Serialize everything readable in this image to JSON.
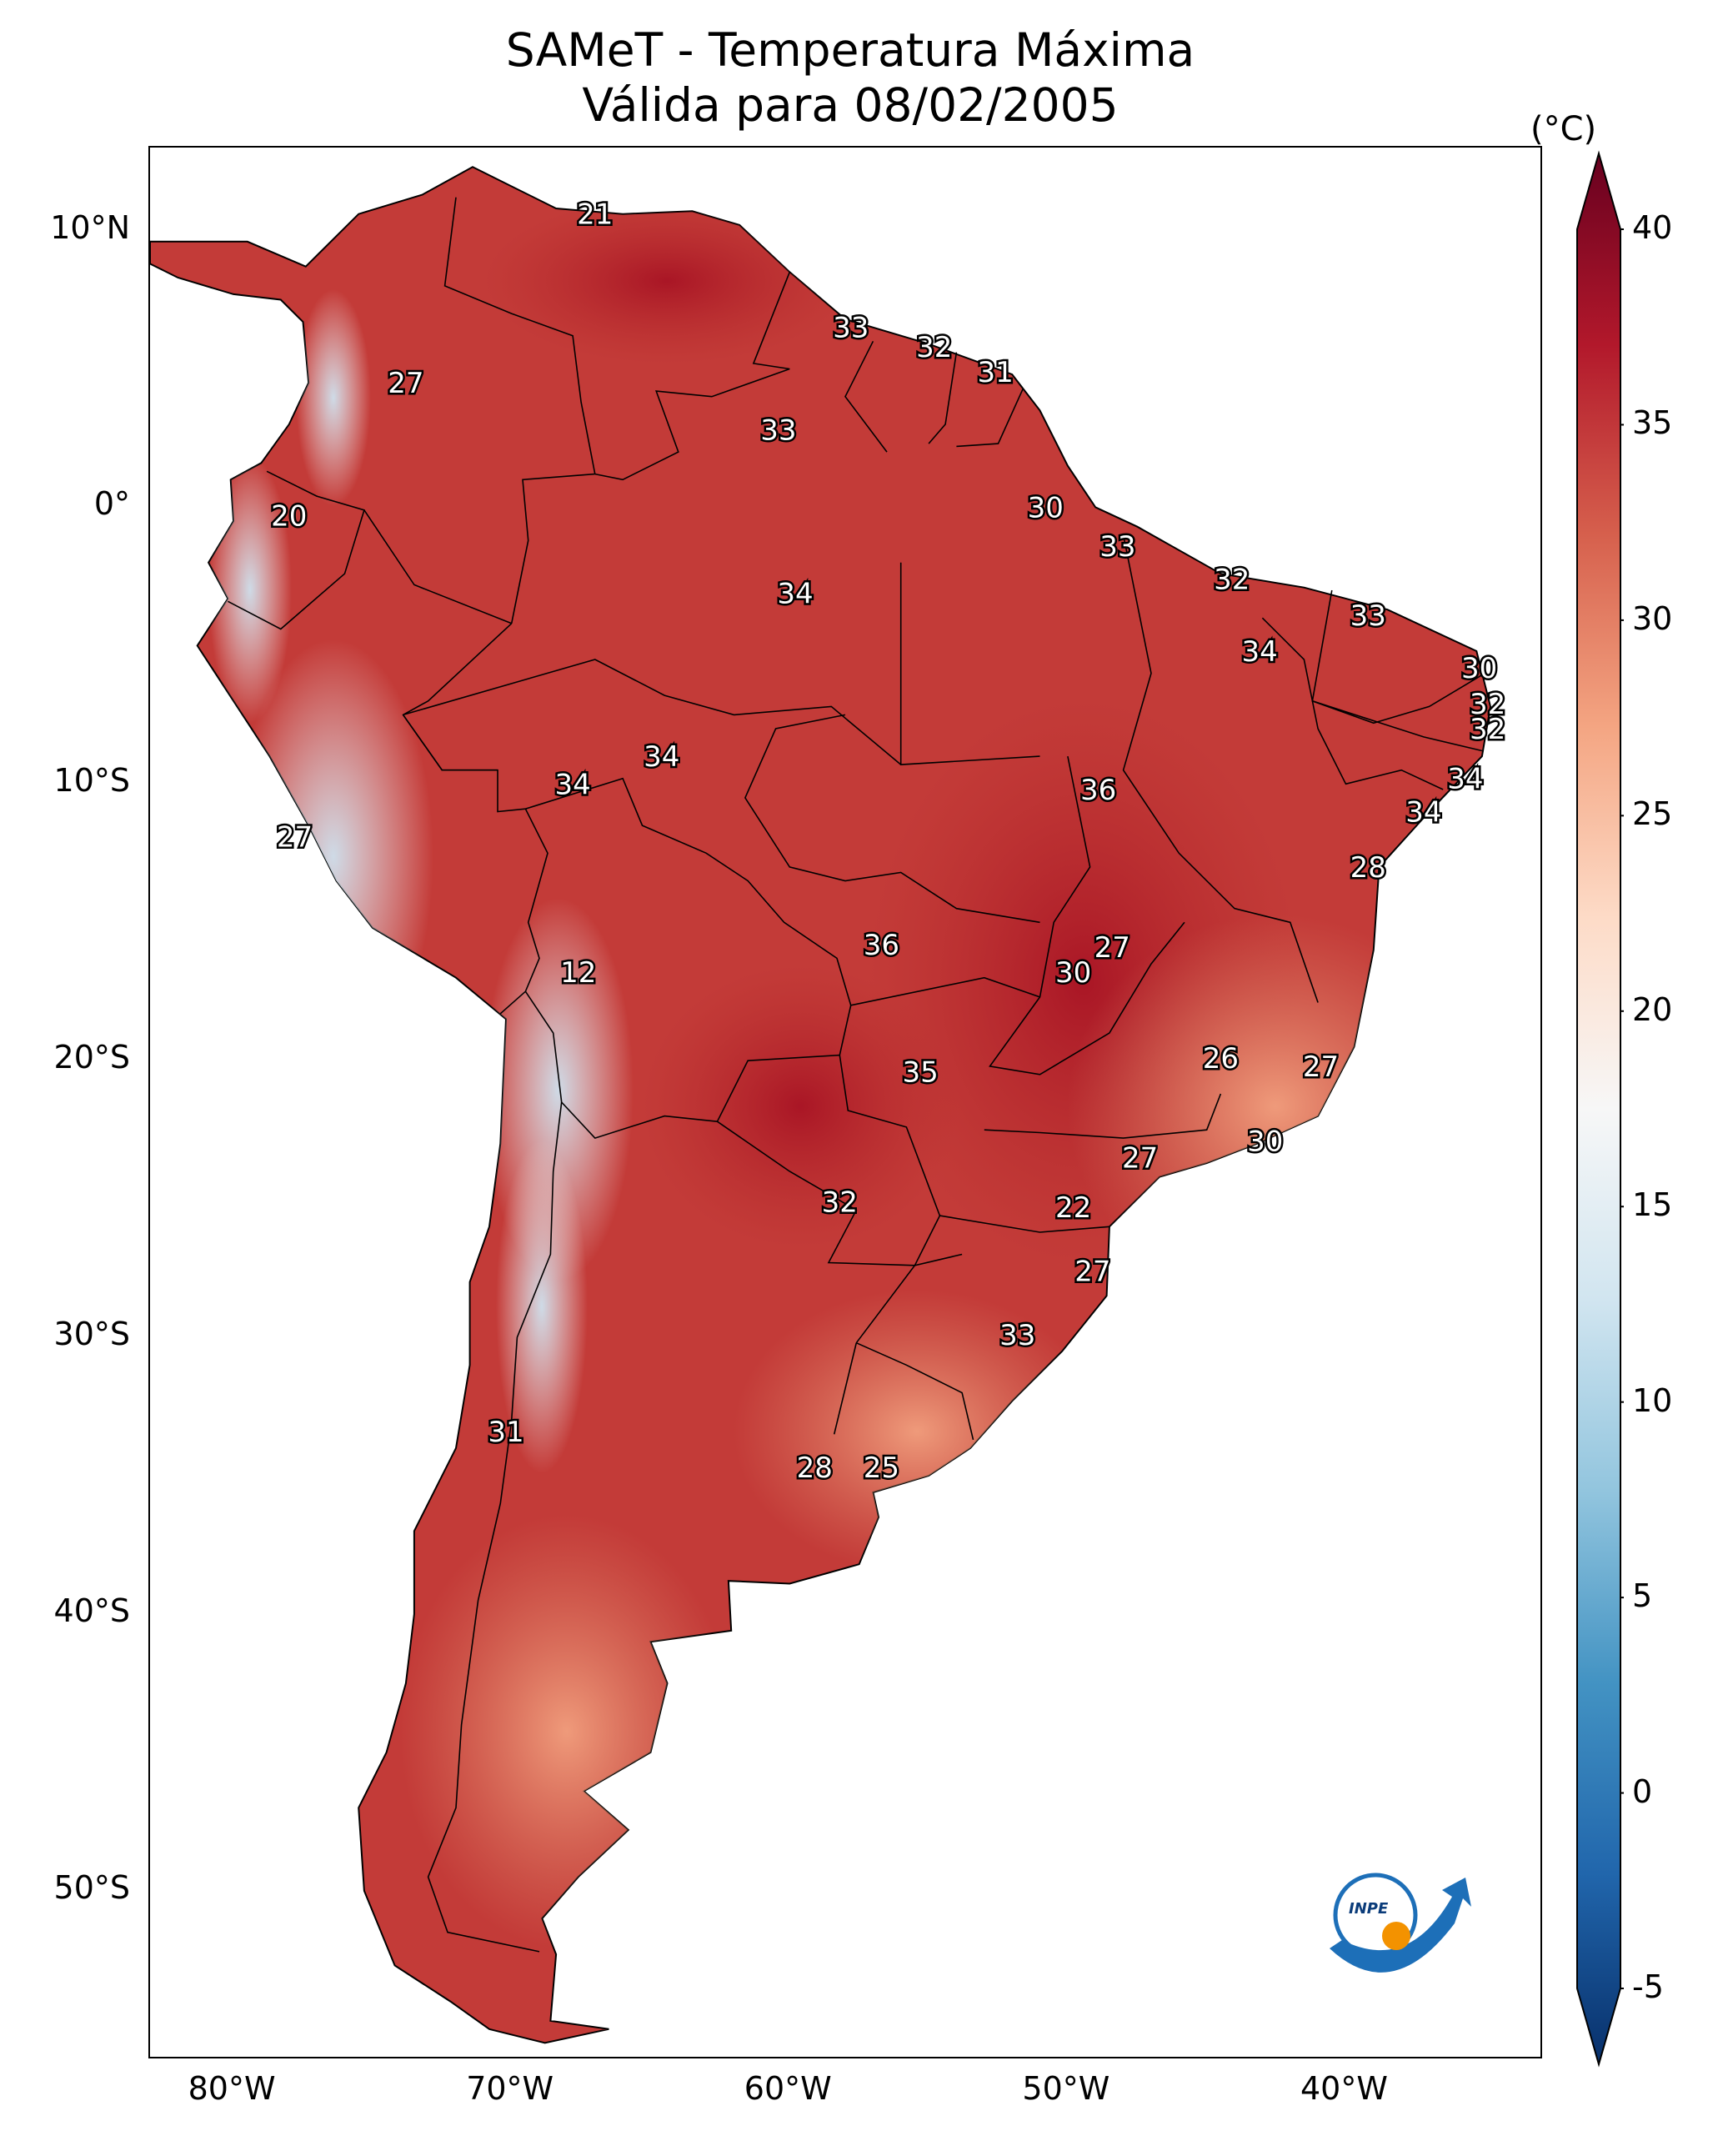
{
  "title": {
    "line1": "SAMeT - Temperatura Máxima",
    "line2": "Válida para 08/02/2005"
  },
  "axes": {
    "lat_labels": [
      "10°N",
      "0°",
      "10°S",
      "20°S",
      "30°S",
      "40°S",
      "50°S"
    ],
    "lat_values": [
      10,
      0,
      -10,
      -20,
      -30,
      -40,
      -50
    ],
    "lon_labels": [
      "80°W",
      "70°W",
      "60°W",
      "50°W",
      "40°W"
    ],
    "lon_values": [
      -80,
      -70,
      -60,
      -50,
      -40
    ],
    "lon_range": [
      -83,
      -33
    ],
    "lat_range": [
      -56,
      13
    ]
  },
  "colorbar": {
    "unit": "(°C)",
    "tick_labels": [
      "40",
      "35",
      "30",
      "25",
      "20",
      "15",
      "10",
      "5",
      "0",
      "-5"
    ],
    "tick_values": [
      40,
      35,
      30,
      25,
      20,
      15,
      10,
      5,
      0,
      -5
    ],
    "range": [
      -5,
      40
    ],
    "colors": [
      "#08306b",
      "#2166ac",
      "#4393c3",
      "#92c5de",
      "#d1e5f0",
      "#f7f7f7",
      "#fddbc7",
      "#f4a582",
      "#d6604d",
      "#b2182b",
      "#67001f"
    ]
  },
  "temperature_labels": [
    {
      "text": "21",
      "lon": -67,
      "lat": 10.6
    },
    {
      "text": "33",
      "lon": -57.8,
      "lat": 6.5
    },
    {
      "text": "32",
      "lon": -54.8,
      "lat": 5.8
    },
    {
      "text": "31",
      "lon": -52.6,
      "lat": 4.9
    },
    {
      "text": "27",
      "lon": -73.8,
      "lat": 4.5
    },
    {
      "text": "33",
      "lon": -60.4,
      "lat": 2.8
    },
    {
      "text": "20",
      "lon": -78,
      "lat": -0.3
    },
    {
      "text": "30",
      "lon": -50.8,
      "lat": 0
    },
    {
      "text": "33",
      "lon": -48.2,
      "lat": -1.4
    },
    {
      "text": "32",
      "lon": -44.1,
      "lat": -2.6
    },
    {
      "text": "34",
      "lon": -59.8,
      "lat": -3.1
    },
    {
      "text": "33",
      "lon": -39.2,
      "lat": -3.9
    },
    {
      "text": "34",
      "lon": -43.1,
      "lat": -5.2
    },
    {
      "text": "30",
      "lon": -35.2,
      "lat": -5.8
    },
    {
      "text": "32",
      "lon": -34.9,
      "lat": -7.1
    },
    {
      "text": "32",
      "lon": -34.9,
      "lat": -8
    },
    {
      "text": "34",
      "lon": -64.6,
      "lat": -9
    },
    {
      "text": "34",
      "lon": -67.8,
      "lat": -10
    },
    {
      "text": "34",
      "lon": -35.7,
      "lat": -9.8
    },
    {
      "text": "36",
      "lon": -48.9,
      "lat": -10.2
    },
    {
      "text": "34",
      "lon": -37.2,
      "lat": -11
    },
    {
      "text": "27",
      "lon": -77.8,
      "lat": -11.9
    },
    {
      "text": "28",
      "lon": -39.2,
      "lat": -13
    },
    {
      "text": "36",
      "lon": -56.7,
      "lat": -15.8
    },
    {
      "text": "27",
      "lon": -48.4,
      "lat": -15.9
    },
    {
      "text": "12",
      "lon": -67.6,
      "lat": -16.8
    },
    {
      "text": "30",
      "lon": -49.8,
      "lat": -16.8
    },
    {
      "text": "26",
      "lon": -44.5,
      "lat": -19.9
    },
    {
      "text": "27",
      "lon": -40.9,
      "lat": -20.2
    },
    {
      "text": "35",
      "lon": -55.3,
      "lat": -20.4
    },
    {
      "text": "30",
      "lon": -42.9,
      "lat": -22.9
    },
    {
      "text": "27",
      "lon": -47.4,
      "lat": -23.5
    },
    {
      "text": "32",
      "lon": -58.2,
      "lat": -25.1
    },
    {
      "text": "22",
      "lon": -49.8,
      "lat": -25.3
    },
    {
      "text": "27",
      "lon": -49.1,
      "lat": -27.6
    },
    {
      "text": "33",
      "lon": -51.8,
      "lat": -29.9
    },
    {
      "text": "31",
      "lon": -70.2,
      "lat": -33.4
    },
    {
      "text": "28",
      "lon": -59.1,
      "lat": -34.7
    },
    {
      "text": "25",
      "lon": -56.7,
      "lat": -34.7
    }
  ],
  "logo": {
    "text": "INPE"
  }
}
